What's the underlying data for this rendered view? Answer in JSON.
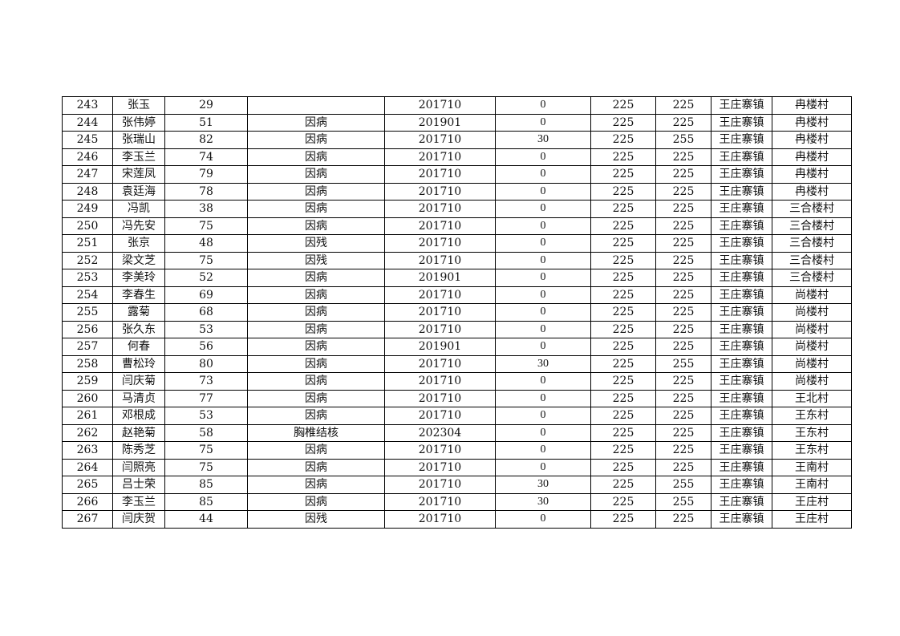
{
  "rows": [
    [
      "243",
      "张玉",
      "29",
      "",
      "201710",
      "0",
      "225",
      "225",
      "王庄寨镇",
      "冉楼村"
    ],
    [
      "244",
      "张伟婷",
      "51",
      "因病",
      "201901",
      "0",
      "225",
      "225",
      "王庄寨镇",
      "冉楼村"
    ],
    [
      "245",
      "张瑞山",
      "82",
      "因病",
      "201710",
      "30",
      "225",
      "255",
      "王庄寨镇",
      "冉楼村"
    ],
    [
      "246",
      "李玉兰",
      "74",
      "因病",
      "201710",
      "0",
      "225",
      "225",
      "王庄寨镇",
      "冉楼村"
    ],
    [
      "247",
      "宋莲凤",
      "79",
      "因病",
      "201710",
      "0",
      "225",
      "225",
      "王庄寨镇",
      "冉楼村"
    ],
    [
      "248",
      "袁廷海",
      "78",
      "因病",
      "201710",
      "0",
      "225",
      "225",
      "王庄寨镇",
      "冉楼村"
    ],
    [
      "249",
      "冯凯",
      "38",
      "因病",
      "201710",
      "0",
      "225",
      "225",
      "王庄寨镇",
      "三合楼村"
    ],
    [
      "250",
      "冯先安",
      "75",
      "因病",
      "201710",
      "0",
      "225",
      "225",
      "王庄寨镇",
      "三合楼村"
    ],
    [
      "251",
      "张京",
      "48",
      "因残",
      "201710",
      "0",
      "225",
      "225",
      "王庄寨镇",
      "三合楼村"
    ],
    [
      "252",
      "梁文芝",
      "75",
      "因残",
      "201710",
      "0",
      "225",
      "225",
      "王庄寨镇",
      "三合楼村"
    ],
    [
      "253",
      "李美玲",
      "52",
      "因病",
      "201901",
      "0",
      "225",
      "225",
      "王庄寨镇",
      "三合楼村"
    ],
    [
      "254",
      "李春生",
      "69",
      "因病",
      "201710",
      "0",
      "225",
      "225",
      "王庄寨镇",
      "尚楼村"
    ],
    [
      "255",
      "露菊",
      "68",
      "因病",
      "201710",
      "0",
      "225",
      "225",
      "王庄寨镇",
      "尚楼村"
    ],
    [
      "256",
      "张久东",
      "53",
      "因病",
      "201710",
      "0",
      "225",
      "225",
      "王庄寨镇",
      "尚楼村"
    ],
    [
      "257",
      "何春",
      "56",
      "因病",
      "201901",
      "0",
      "225",
      "225",
      "王庄寨镇",
      "尚楼村"
    ],
    [
      "258",
      "曹松玲",
      "80",
      "因病",
      "201710",
      "30",
      "225",
      "255",
      "王庄寨镇",
      "尚楼村"
    ],
    [
      "259",
      "闫庆菊",
      "73",
      "因病",
      "201710",
      "0",
      "225",
      "225",
      "王庄寨镇",
      "尚楼村"
    ],
    [
      "260",
      "马清贞",
      "77",
      "因病",
      "201710",
      "0",
      "225",
      "225",
      "王庄寨镇",
      "王北村"
    ],
    [
      "261",
      "邓根成",
      "53",
      "因病",
      "201710",
      "0",
      "225",
      "225",
      "王庄寨镇",
      "王东村"
    ],
    [
      "262",
      "赵艳菊",
      "58",
      "胸椎结核",
      "202304",
      "0",
      "225",
      "225",
      "王庄寨镇",
      "王东村"
    ],
    [
      "263",
      "陈秀芝",
      "75",
      "因病",
      "201710",
      "0",
      "225",
      "225",
      "王庄寨镇",
      "王东村"
    ],
    [
      "264",
      "闫照亮",
      "75",
      "因病",
      "201710",
      "0",
      "225",
      "225",
      "王庄寨镇",
      "王南村"
    ],
    [
      "265",
      "吕士荣",
      "85",
      "因病",
      "201710",
      "30",
      "225",
      "255",
      "王庄寨镇",
      "王南村"
    ],
    [
      "266",
      "李玉兰",
      "85",
      "因病",
      "201710",
      "30",
      "225",
      "255",
      "王庄寨镇",
      "王庄村"
    ],
    [
      "267",
      "闫庆贺",
      "44",
      "因残",
      "201710",
      "0",
      "225",
      "225",
      "王庄寨镇",
      "王庄村"
    ]
  ]
}
